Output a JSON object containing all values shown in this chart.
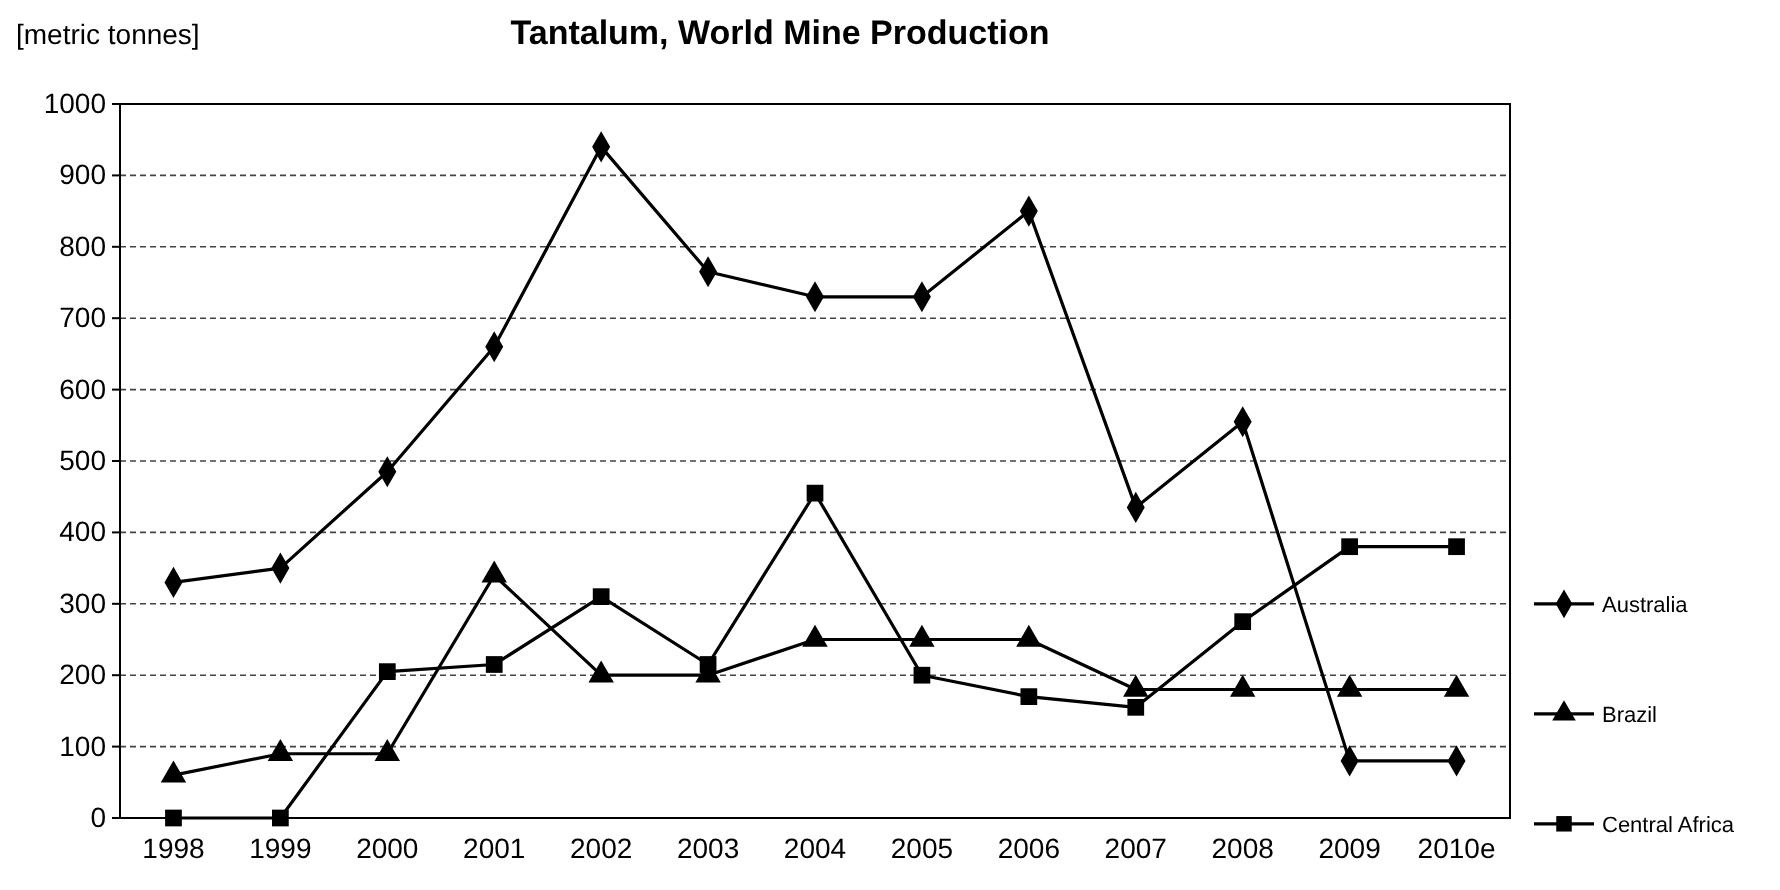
{
  "chart_data": {
    "type": "line",
    "title": "Tantalum, World Mine Production",
    "ylabel": "[metric tonnes]",
    "categories": [
      "1998",
      "1999",
      "2000",
      "2001",
      "2002",
      "2003",
      "2004",
      "2005",
      "2006",
      "2007",
      "2008",
      "2009",
      "2010e"
    ],
    "series": [
      {
        "name": "Australia",
        "color": "#000000",
        "marker": "diamond",
        "values": [
          330,
          350,
          485,
          660,
          940,
          765,
          730,
          730,
          850,
          435,
          555,
          80,
          80
        ]
      },
      {
        "name": "Brazil",
        "color": "#000000",
        "marker": "triangle",
        "values": [
          60,
          90,
          90,
          340,
          200,
          200,
          250,
          250,
          250,
          180,
          180,
          180,
          180
        ]
      },
      {
        "name": "Central Africa",
        "color": "#000000",
        "marker": "square",
        "values": [
          0,
          0,
          205,
          215,
          310,
          215,
          455,
          200,
          170,
          155,
          275,
          380,
          380
        ]
      }
    ],
    "ylim": [
      0,
      1000
    ],
    "yticks": [
      0,
      100,
      200,
      300,
      400,
      500,
      600,
      700,
      800,
      900,
      1000
    ],
    "grid": "y",
    "legend": "right",
    "line_style": "solid"
  }
}
